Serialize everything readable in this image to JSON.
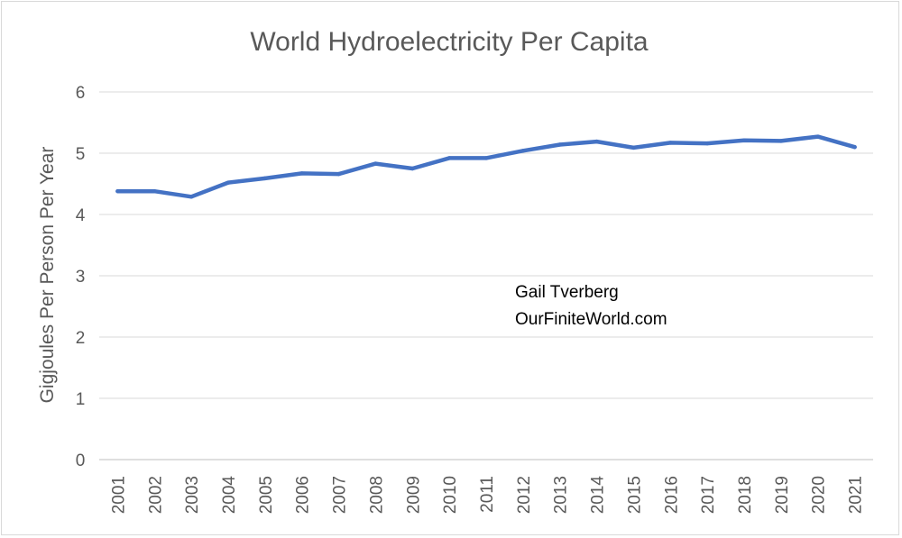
{
  "chart_data": {
    "type": "line",
    "title": "World Hydroelectricity Per Capita",
    "xlabel": "",
    "ylabel": "Gigjoules Per Person Per Year",
    "categories": [
      "2001",
      "2002",
      "2003",
      "2004",
      "2005",
      "2006",
      "2007",
      "2008",
      "2009",
      "2010",
      "2011",
      "2012",
      "2013",
      "2014",
      "2015",
      "2016",
      "2017",
      "2018",
      "2019",
      "2020",
      "2021"
    ],
    "series": [
      {
        "values": [
          4.38,
          4.38,
          4.29,
          4.52,
          4.59,
          4.67,
          4.66,
          4.83,
          4.75,
          4.92,
          4.92,
          5.04,
          5.14,
          5.19,
          5.09,
          5.17,
          5.16,
          5.21,
          5.2,
          5.27,
          5.1
        ],
        "color": "#4472c4"
      }
    ],
    "ylim": [
      0,
      6
    ],
    "yticks": [
      0,
      1,
      2,
      3,
      4,
      5,
      6
    ],
    "grid": true,
    "legend": "none",
    "annotation": [
      "Gail Tverberg",
      "OurFiniteWorld.com"
    ]
  }
}
